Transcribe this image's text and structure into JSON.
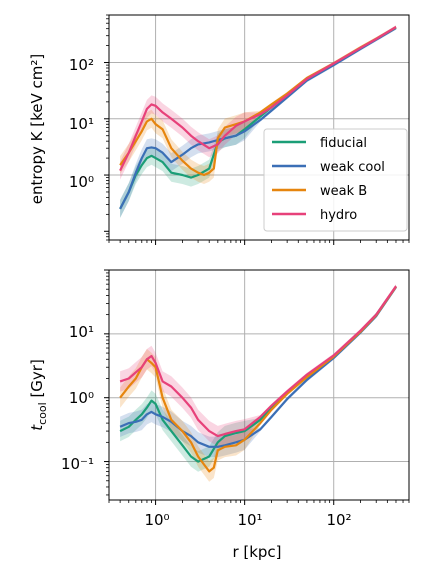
{
  "chart_data": [
    {
      "type": "line",
      "xscale": "log",
      "yscale": "log",
      "xlim": [
        0.3,
        700
      ],
      "ylim": [
        0.07,
        700
      ],
      "xlabel": "",
      "ylabel": "entropy K [keV cm²]",
      "yticks": [
        "10⁰",
        "10¹",
        "10²"
      ],
      "grid": true,
      "legend": {
        "placement": "lower-right",
        "entries": [
          "fiducial",
          "weak cool",
          "weak B",
          "hydro"
        ]
      },
      "series": [
        {
          "name": "fiducial",
          "color": "#1b9e77",
          "x": [
            0.4,
            0.5,
            0.6,
            0.7,
            0.8,
            0.9,
            1.0,
            1.2,
            1.5,
            2.0,
            2.5,
            3.0,
            4.0,
            5.0,
            6.0,
            8.0,
            10,
            15,
            20,
            30,
            50,
            100,
            200,
            300,
            500
          ],
          "y": [
            0.25,
            0.5,
            1.0,
            1.5,
            2.0,
            2.2,
            2.0,
            1.7,
            1.1,
            1.0,
            0.9,
            1.0,
            1.3,
            3.8,
            4.5,
            5.0,
            6.5,
            11,
            16,
            27,
            52,
            95,
            180,
            260,
            420
          ]
        },
        {
          "name": "weak cool",
          "color": "#3b6fb6",
          "x": [
            0.4,
            0.5,
            0.6,
            0.7,
            0.8,
            0.9,
            1.0,
            1.2,
            1.5,
            2.0,
            2.5,
            3.0,
            4.0,
            5.0,
            6.0,
            8.0,
            10,
            15,
            20,
            30,
            50,
            100,
            200,
            300,
            500
          ],
          "y": [
            0.25,
            0.5,
            1.1,
            2.0,
            3.0,
            3.1,
            3.0,
            2.5,
            1.7,
            2.3,
            3.0,
            3.5,
            3.8,
            4.2,
            4.5,
            5.0,
            6.0,
            9.5,
            14,
            24,
            48,
            90,
            175,
            255,
            410
          ]
        },
        {
          "name": "weak B",
          "color": "#e6850e",
          "x": [
            0.4,
            0.5,
            0.6,
            0.7,
            0.8,
            0.9,
            1.0,
            1.2,
            1.5,
            2.0,
            2.5,
            3.0,
            3.5,
            4.0,
            4.5,
            5.0,
            6.0,
            8.0,
            10,
            15,
            20,
            30,
            50,
            100,
            200,
            300,
            500
          ],
          "y": [
            1.5,
            2.5,
            4.0,
            6.0,
            9.0,
            10,
            8.0,
            6.5,
            3.0,
            1.8,
            1.3,
            1.1,
            1.0,
            1.1,
            1.3,
            4.5,
            7.0,
            8.0,
            9.0,
            13,
            18,
            28,
            53,
            97,
            185,
            265,
            425
          ]
        },
        {
          "name": "hydro",
          "color": "#e7417a",
          "x": [
            0.4,
            0.5,
            0.6,
            0.7,
            0.8,
            0.9,
            1.0,
            1.2,
            1.5,
            2.0,
            2.5,
            3.0,
            4.0,
            5.0,
            6.0,
            8.0,
            10,
            15,
            20,
            30,
            50,
            100,
            200,
            300,
            500
          ],
          "y": [
            1.2,
            2.5,
            5.0,
            9.0,
            15,
            18,
            17,
            13,
            10,
            7.0,
            5.0,
            4.0,
            3.0,
            3.5,
            5.0,
            7.5,
            9.0,
            12,
            16,
            26,
            51,
            96,
            182,
            262,
            430
          ]
        }
      ]
    },
    {
      "type": "line",
      "xscale": "log",
      "yscale": "log",
      "xlim": [
        0.3,
        700
      ],
      "ylim": [
        0.025,
        100
      ],
      "xlabel": "r [kpc]",
      "ylabel": "t_cool [Gyr]",
      "xticks": [
        "10⁰",
        "10¹",
        "10²"
      ],
      "yticks": [
        "10⁻¹",
        "10⁰",
        "10¹"
      ],
      "grid": true,
      "series": [
        {
          "name": "fiducial",
          "color": "#1b9e77",
          "x": [
            0.4,
            0.5,
            0.6,
            0.7,
            0.8,
            0.9,
            1.0,
            1.2,
            1.5,
            2.0,
            2.5,
            3.0,
            4.0,
            5.0,
            6.0,
            8.0,
            10,
            15,
            20,
            30,
            50,
            100,
            200,
            300,
            500
          ],
          "y": [
            0.3,
            0.35,
            0.45,
            0.55,
            0.7,
            0.9,
            0.8,
            0.45,
            0.3,
            0.18,
            0.12,
            0.1,
            0.12,
            0.2,
            0.25,
            0.28,
            0.3,
            0.45,
            0.7,
            1.2,
            2.2,
            4.5,
            11,
            20,
            55
          ]
        },
        {
          "name": "weak cool",
          "color": "#3b6fb6",
          "x": [
            0.4,
            0.5,
            0.6,
            0.7,
            0.8,
            0.9,
            1.0,
            1.2,
            1.5,
            2.0,
            2.5,
            3.0,
            4.0,
            5.0,
            6.0,
            8.0,
            10,
            15,
            20,
            30,
            50,
            100,
            200,
            300,
            500
          ],
          "y": [
            0.35,
            0.4,
            0.42,
            0.45,
            0.55,
            0.6,
            0.55,
            0.5,
            0.42,
            0.3,
            0.25,
            0.2,
            0.17,
            0.17,
            0.18,
            0.2,
            0.22,
            0.32,
            0.5,
            0.95,
            1.9,
            4.2,
            10.5,
            19,
            54
          ]
        },
        {
          "name": "weak B",
          "color": "#e6850e",
          "x": [
            0.4,
            0.5,
            0.6,
            0.7,
            0.8,
            0.9,
            1.0,
            1.2,
            1.5,
            2.0,
            2.5,
            3.0,
            3.5,
            4.0,
            4.5,
            5.0,
            6.0,
            8.0,
            10,
            15,
            20,
            30,
            50,
            100,
            200,
            300,
            500
          ],
          "y": [
            1.0,
            1.5,
            2.0,
            3.0,
            4.0,
            3.5,
            3.0,
            1.0,
            0.45,
            0.3,
            0.2,
            0.12,
            0.09,
            0.07,
            0.08,
            0.15,
            0.17,
            0.18,
            0.22,
            0.4,
            0.65,
            1.15,
            2.1,
            4.4,
            10.8,
            19.5,
            55
          ]
        },
        {
          "name": "hydro",
          "color": "#e7417a",
          "x": [
            0.4,
            0.5,
            0.6,
            0.7,
            0.8,
            0.9,
            1.0,
            1.2,
            1.5,
            2.0,
            2.5,
            3.0,
            4.0,
            5.0,
            6.0,
            8.0,
            10,
            15,
            20,
            30,
            50,
            100,
            200,
            300,
            500
          ],
          "y": [
            1.8,
            2.0,
            2.5,
            3.0,
            4.0,
            4.5,
            3.5,
            1.8,
            1.5,
            1.0,
            0.7,
            0.45,
            0.3,
            0.25,
            0.27,
            0.3,
            0.32,
            0.5,
            0.75,
            1.25,
            2.3,
            4.6,
            11.2,
            20,
            56
          ]
        }
      ]
    }
  ]
}
